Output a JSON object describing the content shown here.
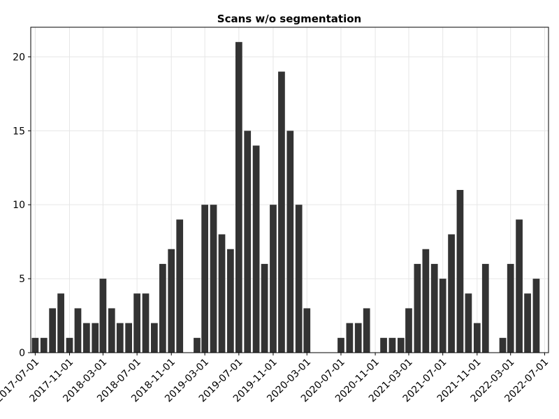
{
  "chart_data": {
    "type": "bar",
    "title": "Scans w/o segmentation",
    "xlabel": "",
    "ylabel": "",
    "grid": true,
    "bar_color": "#333333",
    "grid_color": "#e6e6e6",
    "axis_color": "#000000",
    "ylim": [
      0,
      22
    ],
    "yticks": [
      0,
      5,
      10,
      15,
      20
    ],
    "xlim": [
      "2017-06-15",
      "2022-07-15"
    ],
    "xticks": [
      "2017-07-01",
      "2017-11-01",
      "2018-03-01",
      "2018-07-01",
      "2018-11-01",
      "2019-03-01",
      "2019-07-01",
      "2019-11-01",
      "2020-03-01",
      "2020-07-01",
      "2020-11-01",
      "2021-03-01",
      "2021-07-01",
      "2021-11-01",
      "2022-03-01",
      "2022-07-01"
    ],
    "categories": [
      "2017-07-01",
      "2017-08-01",
      "2017-09-01",
      "2017-10-01",
      "2017-11-01",
      "2017-12-01",
      "2018-01-01",
      "2018-02-01",
      "2018-03-01",
      "2018-04-01",
      "2018-05-01",
      "2018-06-01",
      "2018-07-01",
      "2018-08-01",
      "2018-09-01",
      "2018-10-01",
      "2018-11-01",
      "2018-12-01",
      "2019-01-01",
      "2019-02-01",
      "2019-03-01",
      "2019-04-01",
      "2019-05-01",
      "2019-06-01",
      "2019-07-01",
      "2019-08-01",
      "2019-09-01",
      "2019-10-01",
      "2019-11-01",
      "2019-12-01",
      "2020-01-01",
      "2020-02-01",
      "2020-03-01",
      "2020-04-01",
      "2020-05-01",
      "2020-06-01",
      "2020-07-01",
      "2020-08-01",
      "2020-09-01",
      "2020-10-01",
      "2020-11-01",
      "2020-12-01",
      "2021-01-01",
      "2021-02-01",
      "2021-03-01",
      "2021-04-01",
      "2021-05-01",
      "2021-06-01",
      "2021-07-01",
      "2021-08-01",
      "2021-09-01",
      "2021-10-01",
      "2021-11-01",
      "2021-12-01",
      "2022-01-01",
      "2022-02-01",
      "2022-03-01",
      "2022-04-01",
      "2022-05-01",
      "2022-06-01"
    ],
    "values": [
      1,
      1,
      3,
      4,
      1,
      3,
      2,
      2,
      5,
      3,
      2,
      2,
      4,
      4,
      2,
      6,
      7,
      9,
      0,
      1,
      10,
      10,
      8,
      7,
      21,
      15,
      14,
      6,
      10,
      19,
      15,
      10,
      3,
      0,
      0,
      0,
      1,
      2,
      2,
      3,
      0,
      1,
      1,
      1,
      3,
      6,
      7,
      6,
      5,
      8,
      11,
      4,
      2,
      6,
      0,
      1,
      6,
      9,
      4,
      5
    ]
  }
}
